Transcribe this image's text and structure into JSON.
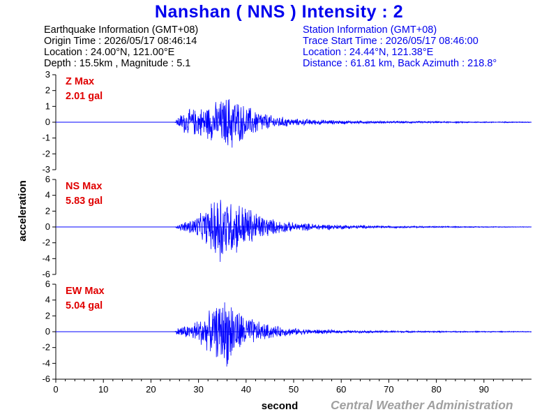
{
  "title": "Nanshan ( NNS ) Intensity : 2",
  "earthquake": {
    "header": "Earthquake Information  (GMT+08)",
    "origin": "Origin Time : 2026/05/17 08:46:14",
    "location": "Location : 24.00°N, 121.00°E",
    "depth": "Depth : 15.5km , Magnitude : 5.1"
  },
  "station": {
    "header": "Station Information  (GMT+08)",
    "trace_start": "Trace Start Time : 2026/05/17 08:46:00",
    "location": "Location : 24.44°N, 121.38°E",
    "distance": "Distance : 61.81 km, Back Azimuth : 218.8°"
  },
  "credit": "Central Weather Administration",
  "colors": {
    "title": "#0000ee",
    "trace": "#0000ff",
    "max_label": "#e00000",
    "credit": "#a0a0a0"
  },
  "chart_data": {
    "type": "line",
    "xlabel": "second",
    "ylabel": "acceleration",
    "xlim": [
      0,
      100
    ],
    "xticks": [
      0,
      10,
      20,
      30,
      40,
      50,
      60,
      70,
      80,
      90
    ],
    "grid": false,
    "panels": [
      {
        "component": "Z",
        "label": "Z Max",
        "max_text": "2.01 gal",
        "max": 2.01,
        "ylim": [
          -3,
          3
        ],
        "yticks": [
          3,
          2,
          1,
          0,
          -1,
          -2,
          -3
        ],
        "envelope": [
          [
            0,
            0
          ],
          [
            25,
            0
          ],
          [
            25.5,
            0.3
          ],
          [
            27,
            0.8
          ],
          [
            30,
            1.0
          ],
          [
            33,
            1.3
          ],
          [
            35,
            1.6
          ],
          [
            37,
            2.0
          ],
          [
            39,
            1.3
          ],
          [
            42,
            0.9
          ],
          [
            45,
            0.5
          ],
          [
            50,
            0.25
          ],
          [
            60,
            0.12
          ],
          [
            70,
            0.08
          ],
          [
            85,
            0.05
          ],
          [
            100,
            0.03
          ]
        ]
      },
      {
        "component": "NS",
        "label": "NS Max",
        "max_text": "5.83 gal",
        "max": 5.83,
        "ylim": [
          -6,
          6
        ],
        "yticks": [
          6,
          4,
          2,
          0,
          -2,
          -4,
          -6
        ],
        "envelope": [
          [
            0,
            0
          ],
          [
            25,
            0
          ],
          [
            26,
            0.4
          ],
          [
            28,
            1.0
          ],
          [
            31,
            2.0
          ],
          [
            33,
            3.5
          ],
          [
            34.5,
            5.8
          ],
          [
            36,
            4.0
          ],
          [
            38,
            3.6
          ],
          [
            40,
            3.0
          ],
          [
            43,
            1.8
          ],
          [
            46,
            1.0
          ],
          [
            50,
            0.6
          ],
          [
            60,
            0.3
          ],
          [
            70,
            0.15
          ],
          [
            85,
            0.08
          ],
          [
            100,
            0.04
          ]
        ]
      },
      {
        "component": "EW",
        "label": "EW Max",
        "max_text": "5.04 gal",
        "max": 5.04,
        "ylim": [
          -6,
          6
        ],
        "yticks": [
          6,
          4,
          2,
          0,
          -2,
          -4,
          -6
        ],
        "envelope": [
          [
            0,
            0
          ],
          [
            25,
            0
          ],
          [
            26,
            0.8
          ],
          [
            28,
            0.9
          ],
          [
            30,
            1.8
          ],
          [
            33,
            3.0
          ],
          [
            35,
            4.4
          ],
          [
            36.5,
            5.04
          ],
          [
            38,
            3.2
          ],
          [
            40,
            2.2
          ],
          [
            43,
            1.3
          ],
          [
            47,
            0.7
          ],
          [
            52,
            0.4
          ],
          [
            60,
            0.2
          ],
          [
            75,
            0.12
          ],
          [
            90,
            0.08
          ],
          [
            100,
            0.05
          ]
        ]
      }
    ]
  }
}
